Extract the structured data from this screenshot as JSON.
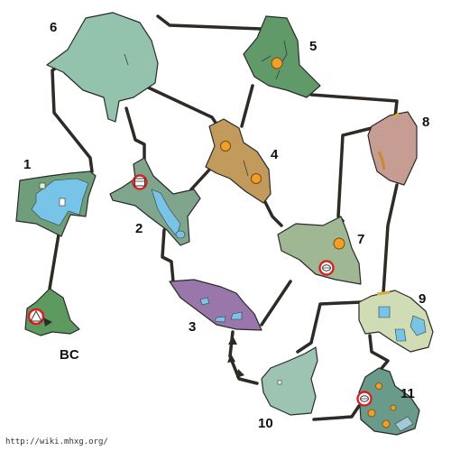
{
  "map": {
    "credit": "http://wiki.mhxg.org/",
    "zones": [
      {
        "id": "1",
        "label": "1",
        "color": "#6f9f7a"
      },
      {
        "id": "2",
        "label": "2",
        "color": "#7fa58d"
      },
      {
        "id": "3",
        "label": "3",
        "color": "#9a77aa"
      },
      {
        "id": "4",
        "label": "4",
        "color": "#c29a5c"
      },
      {
        "id": "5",
        "label": "5",
        "color": "#5f9a68"
      },
      {
        "id": "6",
        "label": "6",
        "color": "#93c3ad"
      },
      {
        "id": "7",
        "label": "7",
        "color": "#9fb893"
      },
      {
        "id": "8",
        "label": "8",
        "color": "#c79c93"
      },
      {
        "id": "9",
        "label": "9",
        "color": "#d0dcb4"
      },
      {
        "id": "10",
        "label": "10",
        "color": "#9dc3b3"
      },
      {
        "id": "11",
        "label": "11",
        "color": "#6a9a8a"
      },
      {
        "id": "BC",
        "label": "BC",
        "color": "#5d9a5f"
      }
    ],
    "colors": {
      "path": "#2e2a26",
      "water": "#78c4e8",
      "marker_orange": "#f0a028",
      "marker_red": "#d82020"
    }
  }
}
